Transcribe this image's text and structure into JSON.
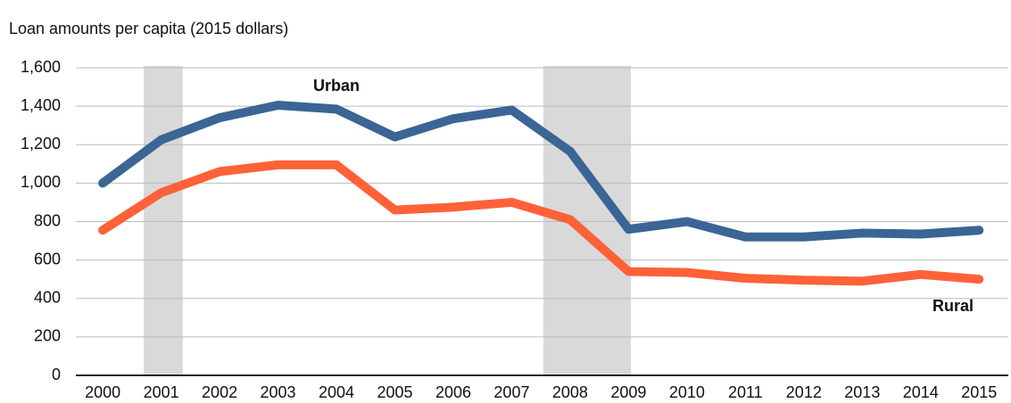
{
  "chart_data": {
    "type": "line",
    "y_label": "Loan amounts per capita (2015 dollars)",
    "x": [
      2000,
      2001,
      2002,
      2003,
      2004,
      2005,
      2006,
      2007,
      2008,
      2009,
      2010,
      2011,
      2012,
      2013,
      2014,
      2015
    ],
    "xlim": [
      1999.54,
      2015.5
    ],
    "xticks": [
      2000,
      2001,
      2002,
      2003,
      2004,
      2005,
      2006,
      2007,
      2008,
      2009,
      2010,
      2011,
      2012,
      2013,
      2014,
      2015
    ],
    "ylim": [
      0,
      1600
    ],
    "yticks": [
      0,
      200,
      400,
      600,
      800,
      {
        "value": 1000,
        "label": "1,000"
      },
      {
        "value": 1200,
        "label": "1,200"
      },
      {
        "value": 1400,
        "label": "1,400"
      },
      {
        "value": 1600,
        "label": "1,600"
      }
    ],
    "grid": true,
    "shaded_regions": [
      [
        2000.7,
        2001.37
      ],
      [
        2007.54,
        2009.04
      ]
    ],
    "shade_color": "#d9d9d9",
    "series": [
      {
        "name": "Urban",
        "color": "#3a6595",
        "values": [
          1000,
          1225,
          1340,
          1405,
          1385,
          1240,
          1335,
          1380,
          1165,
          760,
          800,
          720,
          720,
          740,
          735,
          755
        ]
      },
      {
        "name": "Rural",
        "color": "#ff6138",
        "values": [
          755,
          950,
          1060,
          1095,
          1095,
          860,
          875,
          900,
          810,
          540,
          535,
          505,
          495,
          490,
          525,
          500
        ]
      }
    ]
  }
}
